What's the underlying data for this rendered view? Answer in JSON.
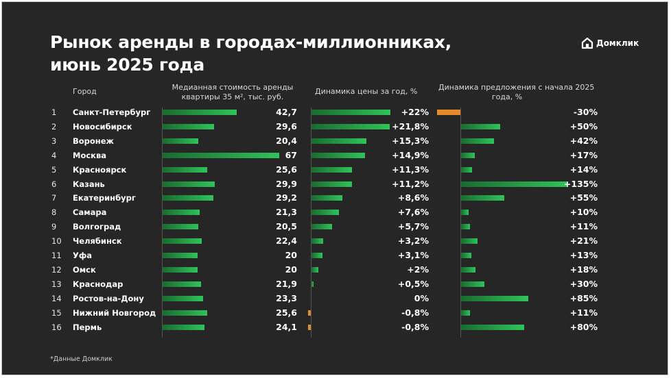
{
  "title_line1": "Рынок аренды в городах-миллионниках,",
  "title_line2": "июнь 2025 года",
  "logo_text": "Домклик",
  "headers": {
    "city": "Город",
    "rent_line1": "Медианная стоимость аренды",
    "rent_line2": "квартиры 35 м², тыс. руб.",
    "price": "Динамика цены за год, %",
    "supply_line1": "Динамика предложения с начала 2025",
    "supply_line2": "года, %"
  },
  "footnote": "*Данные Домклик",
  "colors": {
    "background": "#262626",
    "positive_bar": "#2fc35a",
    "negative_bar": "#e48a2a"
  },
  "chart_data": {
    "type": "bar",
    "categories": [
      "Санкт-Петербург",
      "Новосибирск",
      "Воронеж",
      "Москва",
      "Красноярск",
      "Казань",
      "Екатеринбург",
      "Самара",
      "Волгоград",
      "Челябинск",
      "Уфа",
      "Омск",
      "Краснодар",
      "Ростов-на-Дону",
      "Нижний Новгород",
      "Пермь"
    ],
    "ranks": [
      "1",
      "2",
      "3",
      "4",
      "5",
      "6",
      "7",
      "8",
      "9",
      "10",
      "11",
      "12",
      "13",
      "14",
      "15",
      "16"
    ],
    "series": [
      {
        "name": "Медианная стоимость аренды квартиры 35 м², тыс. руб.",
        "values": [
          42.7,
          29.6,
          20.4,
          67,
          25.6,
          29.9,
          29.2,
          21.3,
          20.5,
          22.4,
          20,
          20,
          21.9,
          23.3,
          25.6,
          24.1
        ],
        "labels": [
          "42,7",
          "29,6",
          "20,4",
          "67",
          "25,6",
          "29,9",
          "29,2",
          "21,3",
          "20,5",
          "22,4",
          "20",
          "20",
          "21,9",
          "23,3",
          "25,6",
          "24,1"
        ]
      },
      {
        "name": "Динамика цены за год, %",
        "values": [
          22,
          21.8,
          15.3,
          14.9,
          11.3,
          11.2,
          8.6,
          7.6,
          5.7,
          3.2,
          3.1,
          2,
          0.5,
          0,
          -0.8,
          -0.8
        ],
        "labels": [
          "+22%",
          "+21,8%",
          "+15,3%",
          "+14,9%",
          "+11,3%",
          "+11,2%",
          "+8,6%",
          "+7,6%",
          "+5,7%",
          "+3,2%",
          "+3,1%",
          "+2%",
          "+0,5%",
          "0%",
          "-0,8%",
          "-0,8%"
        ]
      },
      {
        "name": "Динамика предложения с начала 2025 года, %",
        "values": [
          -30,
          50,
          42,
          17,
          14,
          135,
          55,
          10,
          11,
          21,
          13,
          18,
          30,
          85,
          11,
          80
        ],
        "labels": [
          "-30%",
          "+50%",
          "+42%",
          "+17%",
          "+14%",
          "+135%",
          "+55%",
          "+10%",
          "+11%",
          "+21%",
          "+13%",
          "+18%",
          "+30%",
          "+85%",
          "+11%",
          "+80%"
        ]
      }
    ]
  }
}
